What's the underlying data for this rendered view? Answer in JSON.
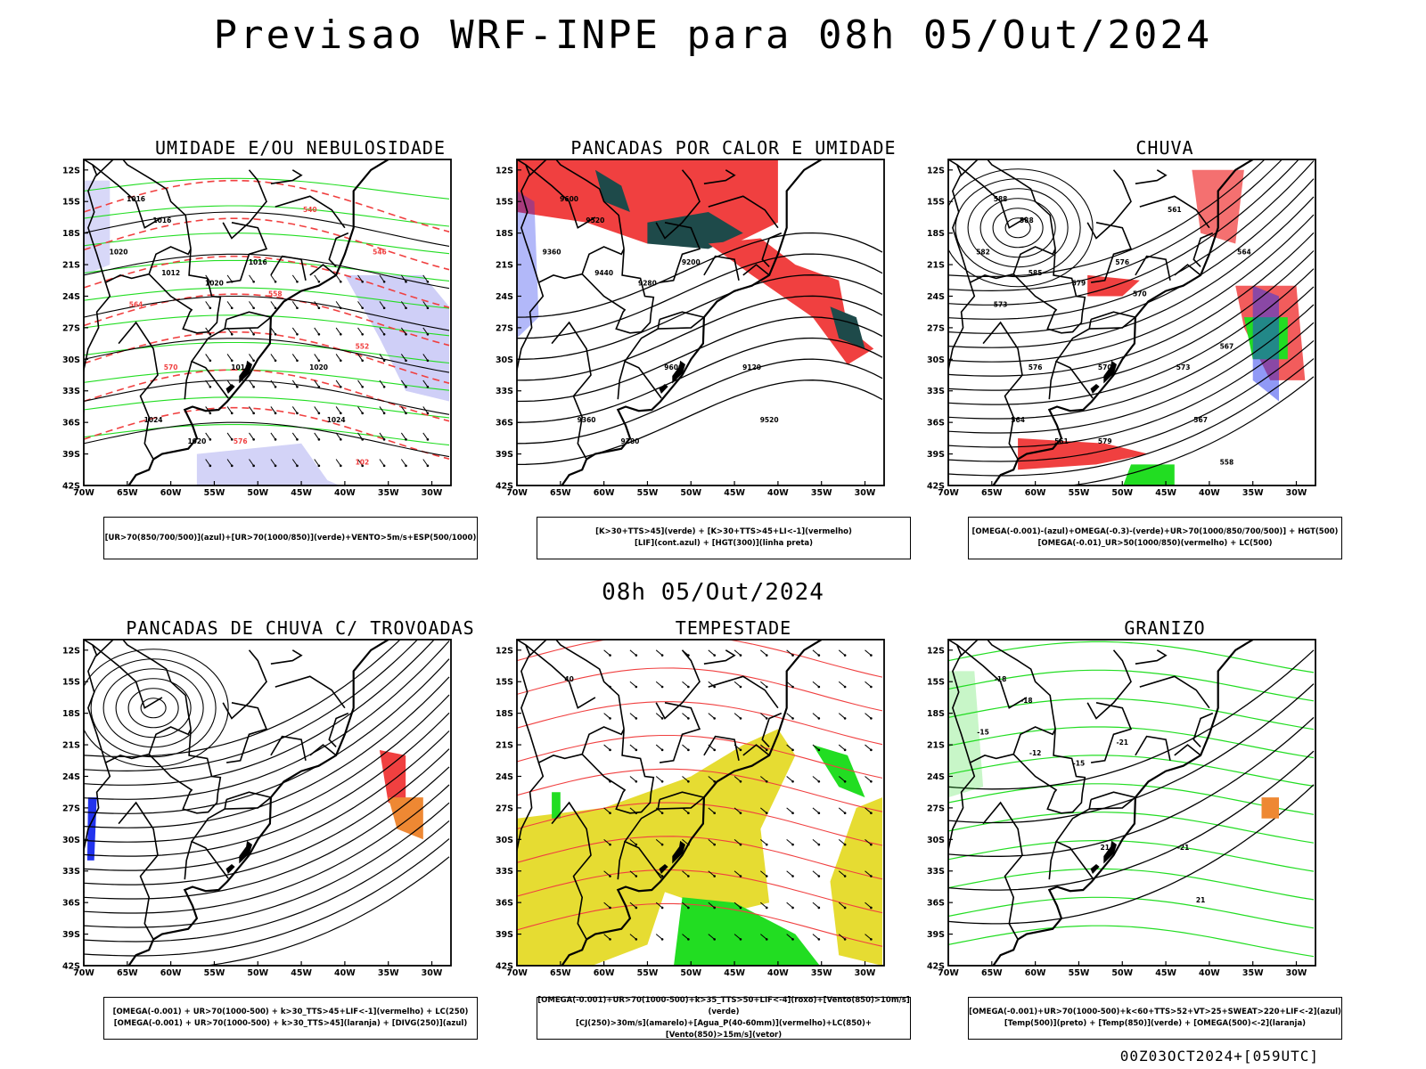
{
  "main_title": "Previsao WRF-INPE  para 08h 05/Out/2024",
  "mid_date": "08h 05/Out/2024",
  "footer": "00Z03OCT2024+[059UTC]",
  "lat_labels": [
    "12S",
    "15S",
    "18S",
    "21S",
    "24S",
    "27S",
    "30S",
    "33S",
    "36S",
    "39S",
    "42S"
  ],
  "lon_labels": [
    "70W",
    "65W",
    "60W",
    "55W",
    "50W",
    "45W",
    "40W",
    "35W",
    "30W"
  ],
  "colors": {
    "red": "#f04040",
    "green": "#22dd22",
    "blue": "#2233ee",
    "dark_teal": "#1e4a4a",
    "yellow": "#e6dc32",
    "orange": "#ee8833",
    "light_blue": "#a8a8f0",
    "black": "#000000"
  },
  "panels": [
    {
      "id": "umidade",
      "title": "UMIDADE E/OU NEBULOSIDADE",
      "legend": [
        "[UR>70(850/700/500)](azul)+[UR>70(1000/850)](verde)+VENTO>5m/s+ESP(500/1000)"
      ],
      "contour_labels": [
        "1016",
        "1016",
        "1012",
        "1020",
        "1020",
        "1016",
        "1020",
        "1016",
        "1024",
        "1024",
        "1020",
        "576",
        "570",
        "564",
        "558",
        "552",
        "546",
        "540",
        "102"
      ]
    },
    {
      "id": "pancadas-calor",
      "title": "PANCADAS POR CALOR E UMIDADE",
      "legend": [
        "[K>30+TTS>45](verde) + [K>30+TTS>45+LI<-1](vermelho)",
        "[LIF](cont.azul) + [HGT(300)](linha preta)"
      ],
      "contour_labels": [
        "9600",
        "9520",
        "9440",
        "9360",
        "9280",
        "9200",
        "9120",
        "9600",
        "9520",
        "9360",
        "9280"
      ]
    },
    {
      "id": "chuva",
      "title": "CHUVA",
      "legend": [
        "[OMEGA(-0.001)-(azul)+OMEGA(-0.3)-(verde)+UR>70(1000/850/700/500)] + HGT(500)",
        "[OMEGA(-0.01)_UR>50(1000/850)(vermelho) + LC(500)"
      ],
      "contour_labels": [
        "588",
        "588",
        "585",
        "582",
        "579",
        "576",
        "573",
        "570",
        "567",
        "564",
        "561",
        "579",
        "576",
        "573",
        "570",
        "567",
        "564",
        "561",
        "558"
      ]
    },
    {
      "id": "pancadas-trovoadas",
      "title": "PANCADAS DE CHUVA C/ TROVOADAS",
      "legend": [
        "[OMEGA(-0.001) + UR>70(1000-500) + k>30_TTS>45+LIF<-1](vermelho) + LC(250)",
        "[OMEGA(-0.001) + UR>70(1000-500) + k>30_TTS>45](laranja) + [DIVG(250)](azul)"
      ],
      "contour_labels": []
    },
    {
      "id": "tempestade",
      "title": "TEMPESTADE",
      "legend": [
        "[OMEGA(-0.001)+UR>70(1000-500)+k>35_TTS>50+LIF<-4](roxo)+[Vento(850)>10m/s](verde)",
        "[CJ(250)>30m/s](amarelo)+[Agua_P(40-60mm)](vermelho)+LC(850)+[Vento(850)>15m/s](vetor)"
      ],
      "contour_labels": [
        "40"
      ]
    },
    {
      "id": "granizo",
      "title": "GRANIZO",
      "legend": [
        "[OMEGA(-0.001)+UR>70(1000-500)+k<60+TTS>52+VT>25+SWEAT>220+LIF<-2](azul)",
        "[Temp(500)](preto) + [Temp(850)](verde) + [OMEGA(500)<-2](laranja)"
      ],
      "contour_labels": [
        "-18",
        "-18",
        "-12",
        "-15",
        "-15",
        "-21",
        "-21",
        "21",
        "21"
      ]
    }
  ]
}
